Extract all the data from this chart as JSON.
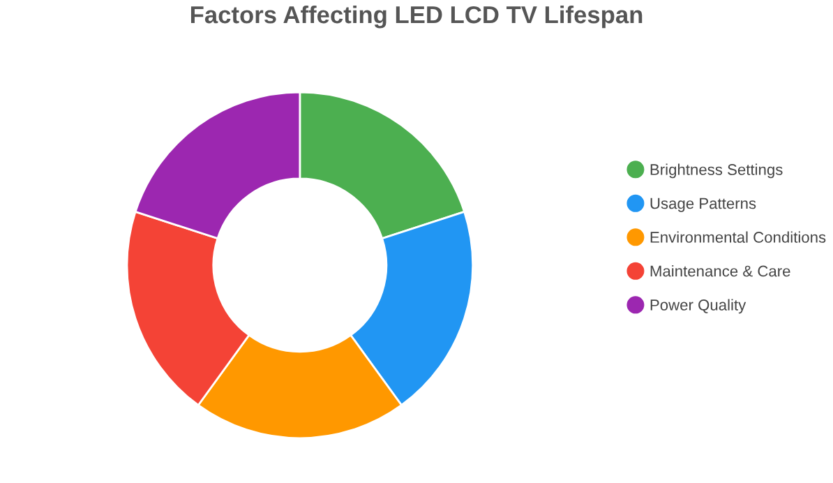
{
  "chart_data": {
    "type": "donut",
    "title": "Factors Affecting LED LCD TV Lifespan",
    "categories": [
      "Brightness Settings",
      "Usage Patterns",
      "Environmental Conditions",
      "Maintenance & Care",
      "Power Quality"
    ],
    "values": [
      20,
      20,
      20,
      20,
      20
    ],
    "colors": [
      "#4caf50",
      "#2196f3",
      "#ff9800",
      "#f44336",
      "#9c27b0"
    ],
    "legend": "right"
  }
}
